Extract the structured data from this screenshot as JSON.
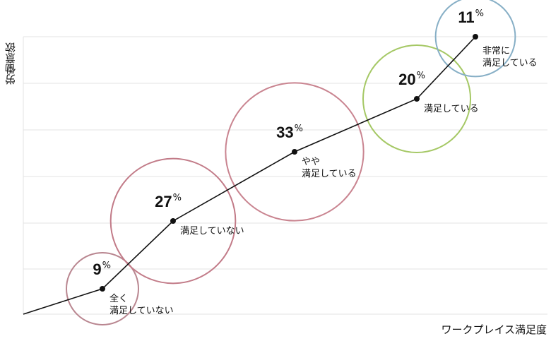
{
  "chart_data": {
    "type": "bubble-line",
    "x_label": "ワークプレイス満足度",
    "y_label": "労働意欲",
    "categories": [
      "全く\n満足していない",
      "満足していない",
      "やや\n満足している",
      "満足している",
      "非常に\n満足している"
    ],
    "values": [
      9,
      27,
      33,
      20,
      11
    ],
    "unit": "%",
    "colors": [
      "#b98690",
      "#c27b88",
      "#c98490",
      "#a5c865",
      "#87afc6"
    ],
    "grid": true
  }
}
